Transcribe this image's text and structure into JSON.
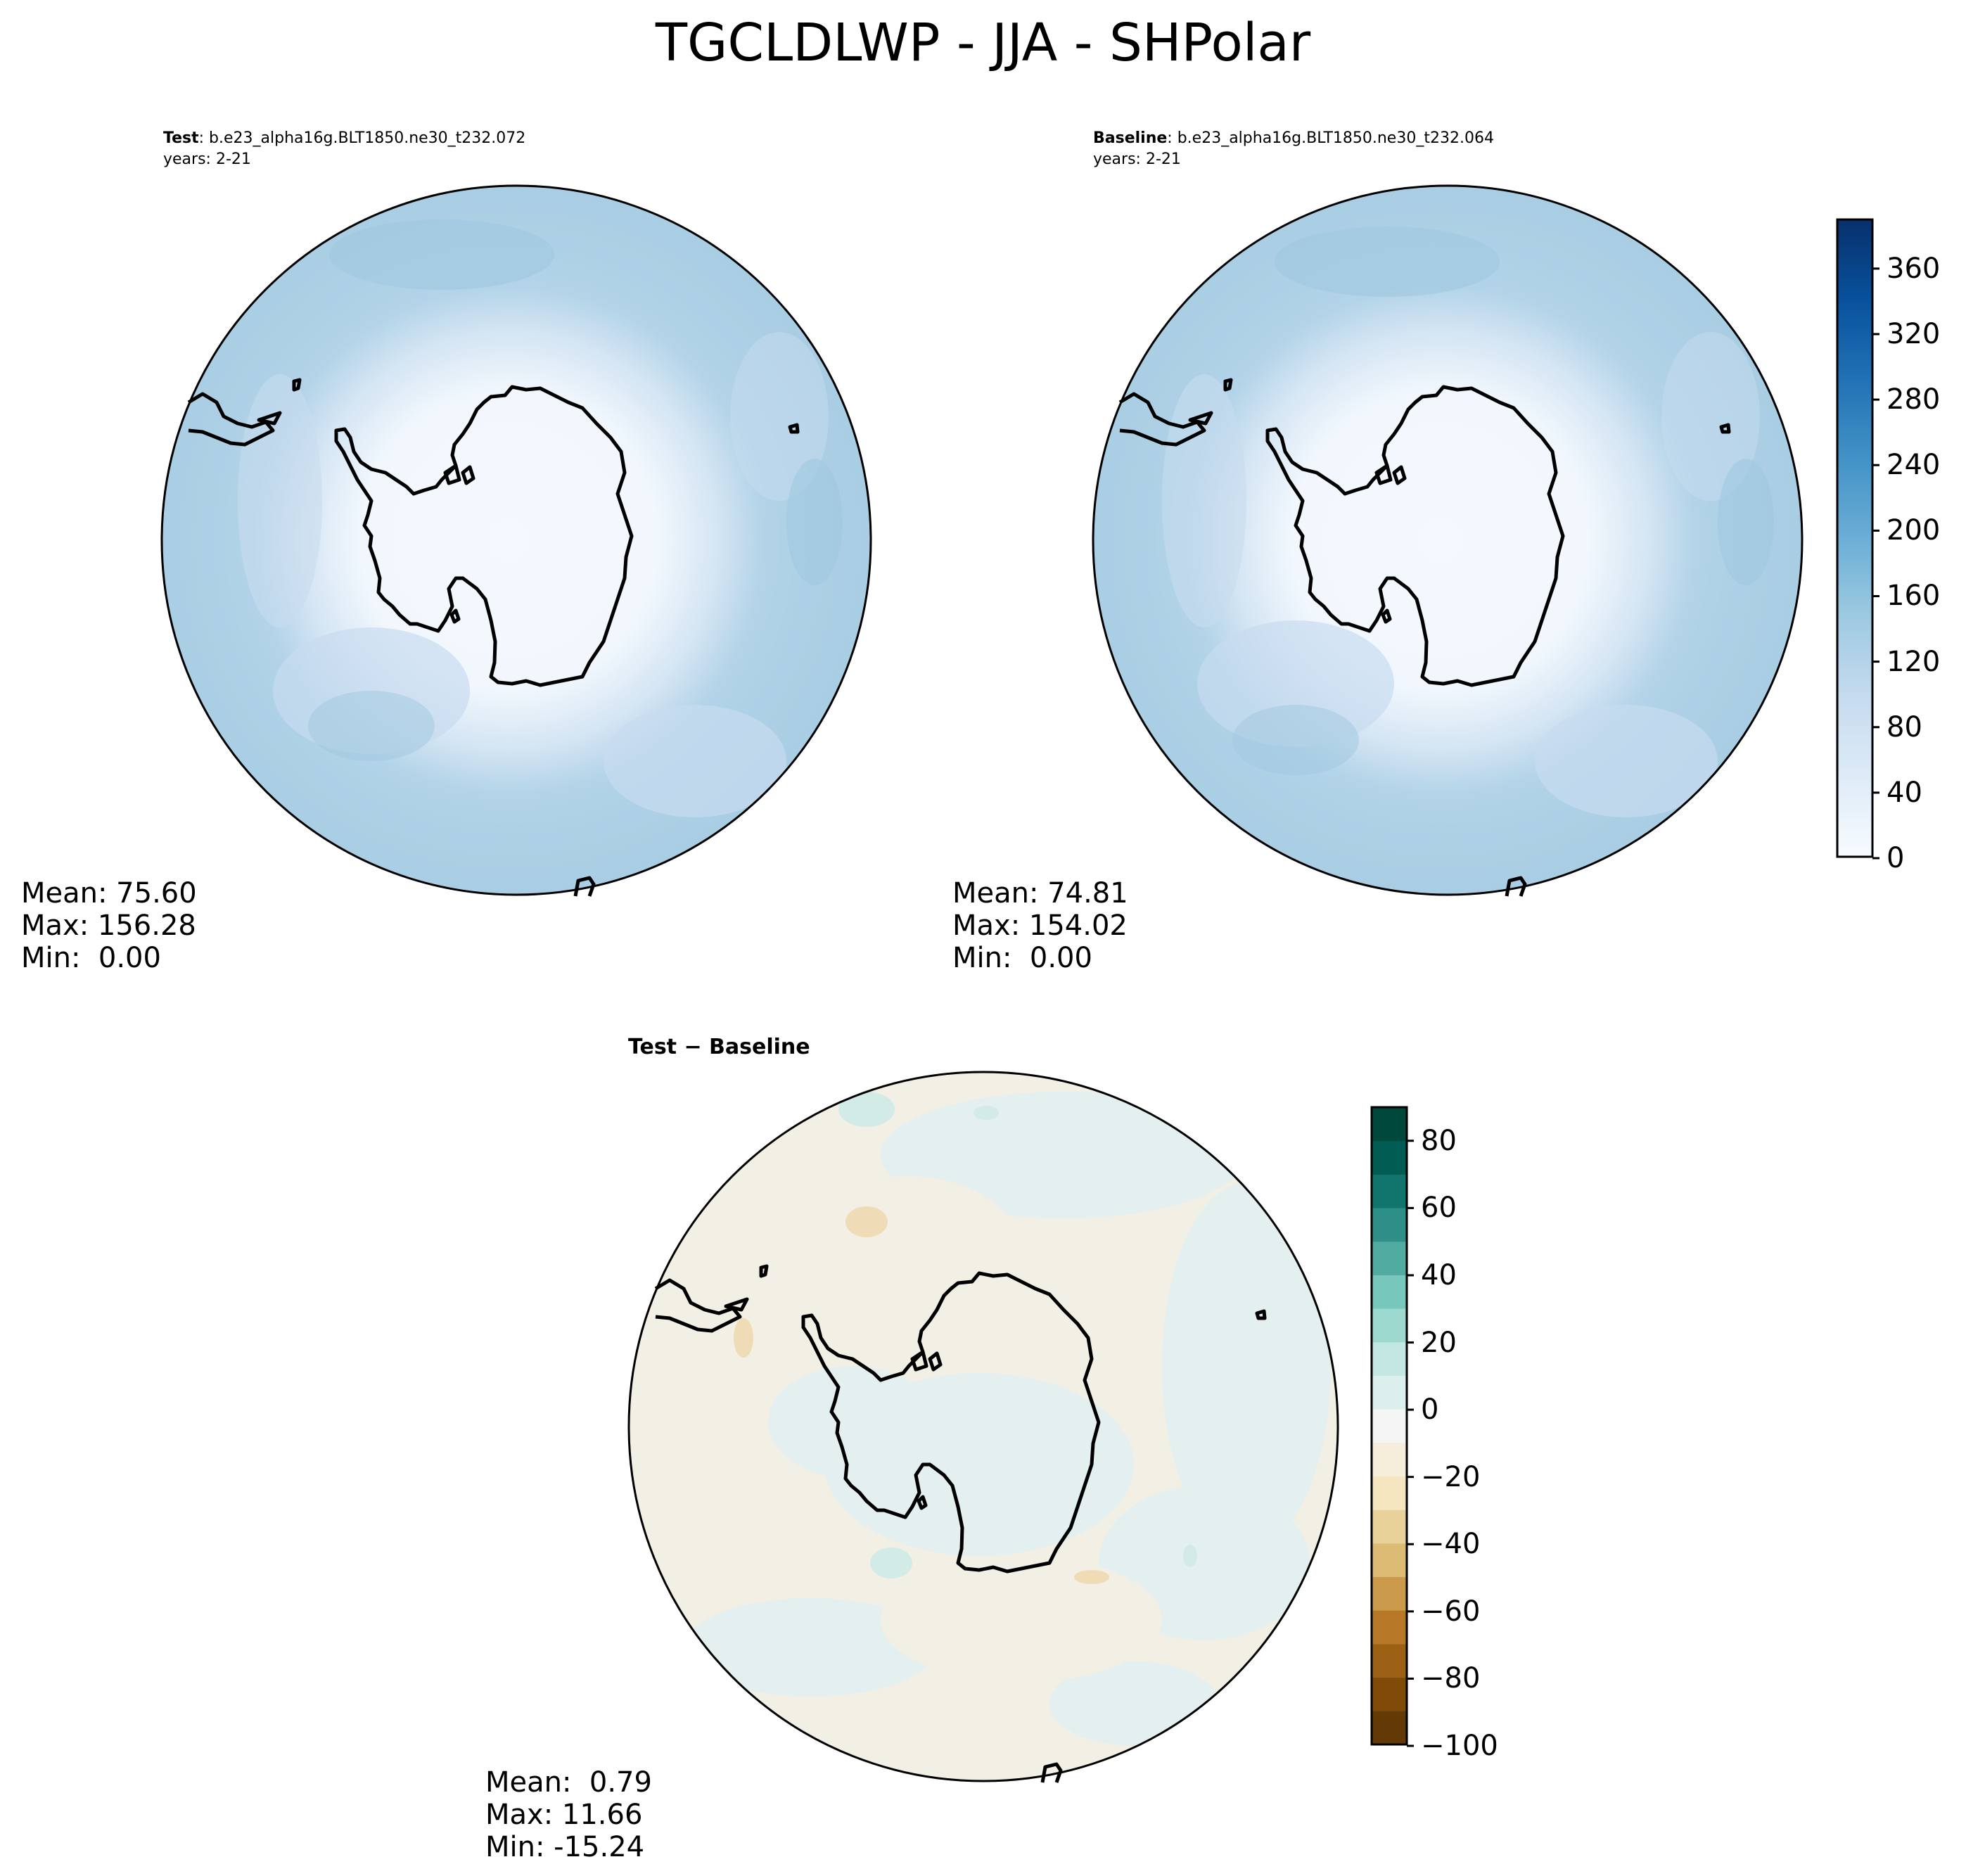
{
  "figure": {
    "title": "TGCLDLWP - JJA - SHPolar"
  },
  "panels": {
    "test": {
      "label": "Test",
      "case": ": b.e23_alpha16g.BLT1850.ne30_t232.072",
      "years": "years: 2-21",
      "stats": {
        "mean": "Mean: 75.60",
        "max": "Max: 156.28",
        "min": "Min:  0.00"
      }
    },
    "baseline": {
      "label": "Baseline",
      "case": ": b.e23_alpha16g.BLT1850.ne30_t232.064",
      "years": "years: 2-21",
      "stats": {
        "mean": "Mean: 74.81",
        "max": "Max: 154.02",
        "min": "Min:  0.00"
      }
    },
    "diff": {
      "label": "Test − Baseline",
      "stats": {
        "mean": "Mean:  0.79",
        "max": "Max: 11.66",
        "min": "Min: -15.24"
      }
    }
  },
  "colorbars": {
    "main": {
      "ticks": [
        "0",
        "40",
        "80",
        "120",
        "160",
        "200",
        "240",
        "280",
        "320",
        "360"
      ],
      "tick_values": [
        0,
        40,
        80,
        120,
        160,
        200,
        240,
        280,
        320,
        360
      ],
      "range": [
        0,
        390
      ],
      "colormap": "Blues",
      "colors": [
        "#f7fbff",
        "#deebf7",
        "#c6dbef",
        "#9ecae1",
        "#6baed6",
        "#4292c6",
        "#2171b5",
        "#08519c",
        "#08306b"
      ]
    },
    "diff": {
      "ticks": [
        "80",
        "60",
        "40",
        "20",
        "0",
        "−20",
        "−40",
        "−60",
        "−80",
        "−100"
      ],
      "tick_values": [
        80,
        60,
        40,
        20,
        0,
        -20,
        -40,
        -60,
        -80,
        -100
      ],
      "range": [
        -100,
        90
      ],
      "colormap": "BrBG",
      "colors": [
        "#543005",
        "#8c510a",
        "#bf812d",
        "#dfc27d",
        "#f6e8c3",
        "#f5f5f5",
        "#c7eae5",
        "#80cdc1",
        "#35978f",
        "#01665e",
        "#003c30"
      ]
    }
  },
  "map_colors": {
    "test_outer": "#a6cbe3",
    "test_mid": "#c4d9ee",
    "test_inner": "#f4f9ff",
    "diff_base": "#f1efe4",
    "diff_pos": "#e3eef0",
    "diff_neg": "#f2e6cc",
    "coast": "#000000"
  }
}
